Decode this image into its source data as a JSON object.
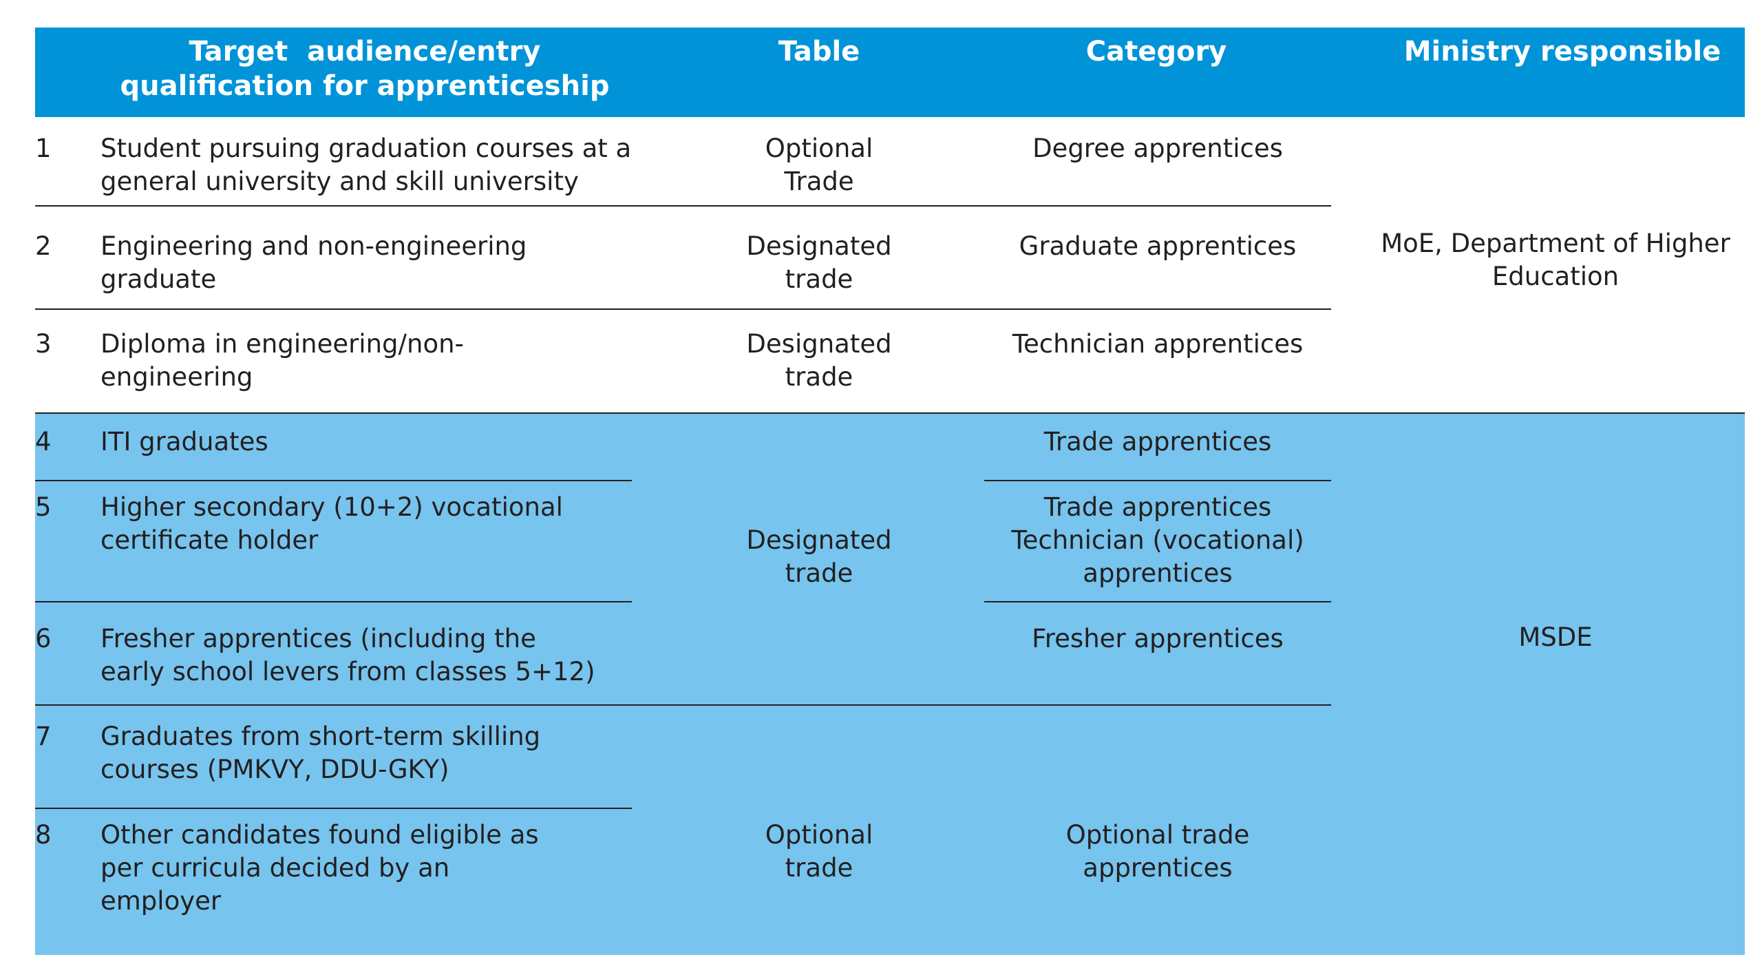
{
  "header": {
    "audience_line1": "Target  audience/entry",
    "audience_line2": "qualification for apprenticeship",
    "table": "Table",
    "category": "Category",
    "ministry": "Ministry responsible"
  },
  "rows": [
    {
      "num": "1",
      "audience": [
        "Student pursuing graduation courses at a",
        "general university and skill university"
      ],
      "category": [
        "Degree apprentices"
      ]
    },
    {
      "num": "2",
      "audience": [
        "Engineering and non-engineering",
        "graduate"
      ],
      "category": [
        "Graduate apprentices"
      ]
    },
    {
      "num": "3",
      "audience": [
        "Diploma in engineering/non-",
        "engineering"
      ],
      "category": [
        "Technician apprentices"
      ]
    },
    {
      "num": "4",
      "audience": [
        "ITI graduates"
      ],
      "category": [
        "Trade apprentices"
      ]
    },
    {
      "num": "5",
      "audience": [
        "Higher secondary (10+2) vocational",
        "certificate holder"
      ],
      "category": [
        "Trade apprentices",
        "Technician (vocational)",
        "apprentices"
      ]
    },
    {
      "num": "6",
      "audience": [
        "Fresher apprentices (including the",
        "early school levers from classes 5+12)"
      ],
      "category": [
        "Fresher apprentices"
      ]
    },
    {
      "num": "7",
      "audience": [
        "Graduates from short-term skilling",
        "courses (PMKVY, DDU-GKY)"
      ]
    },
    {
      "num": "8",
      "audience": [
        "Other candidates found eligible as",
        "per curricula decided by an",
        "employer"
      ]
    }
  ],
  "table_cells": {
    "row1": [
      "Optional",
      "Trade"
    ],
    "row2": [
      "Designated",
      "trade"
    ],
    "row3": [
      "Designated",
      "trade"
    ],
    "rows4to6": [
      "Designated",
      "trade"
    ],
    "rows7to8": [
      "Optional",
      "trade"
    ]
  },
  "category_rows7to8": [
    "Optional trade",
    "apprentices"
  ],
  "ministry": {
    "moe": [
      "MoE, Department of Higher",
      "Education"
    ],
    "msde": "MSDE"
  },
  "colors": {
    "header_bg": "#0093d8",
    "msde_bg": "#77c4ee",
    "text": "#231f20"
  }
}
